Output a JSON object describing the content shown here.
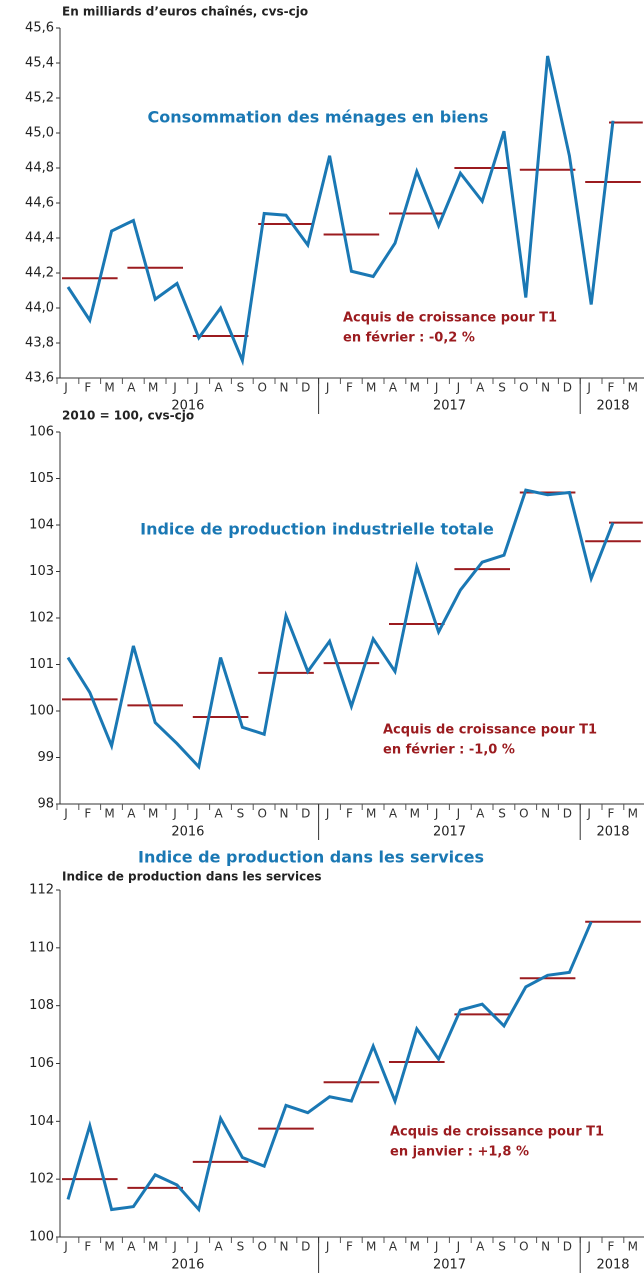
{
  "chart_data": [
    {
      "type": "line",
      "header": "En milliards d’euros chaînés, cvs-cjo",
      "title": "Consommation des ménages en biens",
      "annotation": [
        "Acquis de croissance pour T1",
        "en février :  -0,2 %"
      ],
      "categories": [
        "J",
        "F",
        "M",
        "A",
        "M",
        "J",
        "J",
        "A",
        "S",
        "O",
        "N",
        "D",
        "J",
        "F",
        "M",
        "A",
        "M",
        "J",
        "J",
        "A",
        "S",
        "O",
        "N",
        "D",
        "J",
        "F",
        "M"
      ],
      "years": [
        "2016",
        "2017",
        "2018"
      ],
      "ylim": [
        43.6,
        45.6
      ],
      "yticks": [
        {
          "value": 43.6,
          "label": "43,6"
        },
        {
          "value": 43.8,
          "label": "43,8"
        },
        {
          "value": 44.0,
          "label": "44,0"
        },
        {
          "value": 44.2,
          "label": "44,2"
        },
        {
          "value": 44.4,
          "label": "44,4"
        },
        {
          "value": 44.6,
          "label": "44,6"
        },
        {
          "value": 44.8,
          "label": "44,8"
        },
        {
          "value": 45.0,
          "label": "45,0"
        },
        {
          "value": 45.2,
          "label": "45,2"
        },
        {
          "value": 45.4,
          "label": "45,4"
        },
        {
          "value": 45.6,
          "label": "45,6"
        }
      ],
      "series": [
        {
          "color": "#1a78b4",
          "values": [
            44.12,
            43.93,
            44.44,
            44.5,
            44.05,
            44.14,
            43.83,
            44.0,
            43.7,
            44.54,
            44.53,
            44.36,
            44.87,
            44.21,
            44.18,
            44.37,
            44.78,
            44.47,
            44.77,
            44.61,
            45.01,
            44.06,
            45.44,
            44.87,
            44.02,
            45.07,
            null
          ]
        }
      ],
      "quarterly": {
        "color": "#9b1b1f",
        "values": [
          44.17,
          44.23,
          43.84,
          44.48,
          44.42,
          44.54,
          44.8,
          44.79,
          44.72
        ]
      },
      "extra": {
        "color": "#9b1b1f",
        "values": [
          null,
          null,
          null,
          null,
          null,
          null,
          null,
          null,
          null,
          null,
          null,
          null,
          null,
          null,
          null,
          null,
          null,
          null,
          null,
          null,
          null,
          null,
          null,
          null,
          null,
          null,
          45.06
        ]
      }
    },
    {
      "type": "line",
      "header": "2010 = 100, cvs-cjo",
      "title": "Indice de production industrielle totale",
      "annotation": [
        "Acquis de croissance pour T1",
        "en février :  -1,0 %"
      ],
      "categories": [
        "J",
        "F",
        "M",
        "A",
        "M",
        "J",
        "J",
        "A",
        "S",
        "O",
        "N",
        "D",
        "J",
        "F",
        "M",
        "A",
        "M",
        "J",
        "J",
        "A",
        "S",
        "O",
        "N",
        "D",
        "J",
        "F",
        "M"
      ],
      "years": [
        "2016",
        "2017",
        "2018"
      ],
      "ylim": [
        98,
        106
      ],
      "yticks": [
        98,
        99,
        100,
        101,
        102,
        103,
        104,
        105,
        106
      ],
      "series": [
        {
          "color": "#1a78b4",
          "values": [
            101.15,
            100.4,
            99.25,
            101.4,
            99.75,
            99.3,
            98.8,
            101.15,
            99.65,
            99.5,
            102.05,
            100.85,
            101.5,
            100.1,
            101.55,
            100.85,
            103.1,
            101.7,
            102.6,
            103.2,
            103.35,
            104.75,
            104.65,
            104.7,
            102.85,
            104.05,
            null
          ]
        }
      ],
      "quarterly": {
        "color": "#9b1b1f",
        "values": [
          100.25,
          100.12,
          99.87,
          100.82,
          101.03,
          101.87,
          103.05,
          104.7,
          103.65
        ]
      },
      "extra": {
        "color": "#9b1b1f",
        "values": [
          null,
          null,
          null,
          null,
          null,
          null,
          null,
          null,
          null,
          null,
          null,
          null,
          null,
          null,
          null,
          null,
          null,
          null,
          null,
          null,
          null,
          null,
          null,
          null,
          null,
          null,
          104.05
        ]
      }
    },
    {
      "type": "line",
      "header": "Indice de production dans les services",
      "title": "Indice de production dans les services",
      "annotation": [
        "Acquis de croissance pour T1",
        "en janvier :  +1,8 %"
      ],
      "categories": [
        "J",
        "F",
        "M",
        "A",
        "M",
        "J",
        "J",
        "A",
        "S",
        "O",
        "N",
        "D",
        "J",
        "F",
        "M",
        "A",
        "M",
        "J",
        "J",
        "A",
        "S",
        "O",
        "N",
        "D",
        "J",
        "F",
        "M"
      ],
      "years": [
        "2016",
        "2017",
        "2018"
      ],
      "ylim": [
        100,
        112
      ],
      "yticks": [
        100,
        102,
        104,
        106,
        108,
        110,
        112
      ],
      "series": [
        {
          "color": "#1a78b4",
          "values": [
            101.3,
            103.85,
            100.95,
            101.05,
            102.15,
            101.8,
            100.95,
            104.1,
            102.75,
            102.45,
            104.55,
            104.3,
            104.85,
            104.7,
            106.6,
            104.7,
            107.2,
            106.15,
            107.85,
            108.05,
            107.3,
            108.65,
            109.05,
            109.15,
            110.9,
            null,
            null
          ]
        }
      ],
      "quarterly": {
        "color": "#9b1b1f",
        "values": [
          102.0,
          101.7,
          102.6,
          103.75,
          105.35,
          106.05,
          107.7,
          108.95,
          110.9
        ]
      }
    }
  ]
}
